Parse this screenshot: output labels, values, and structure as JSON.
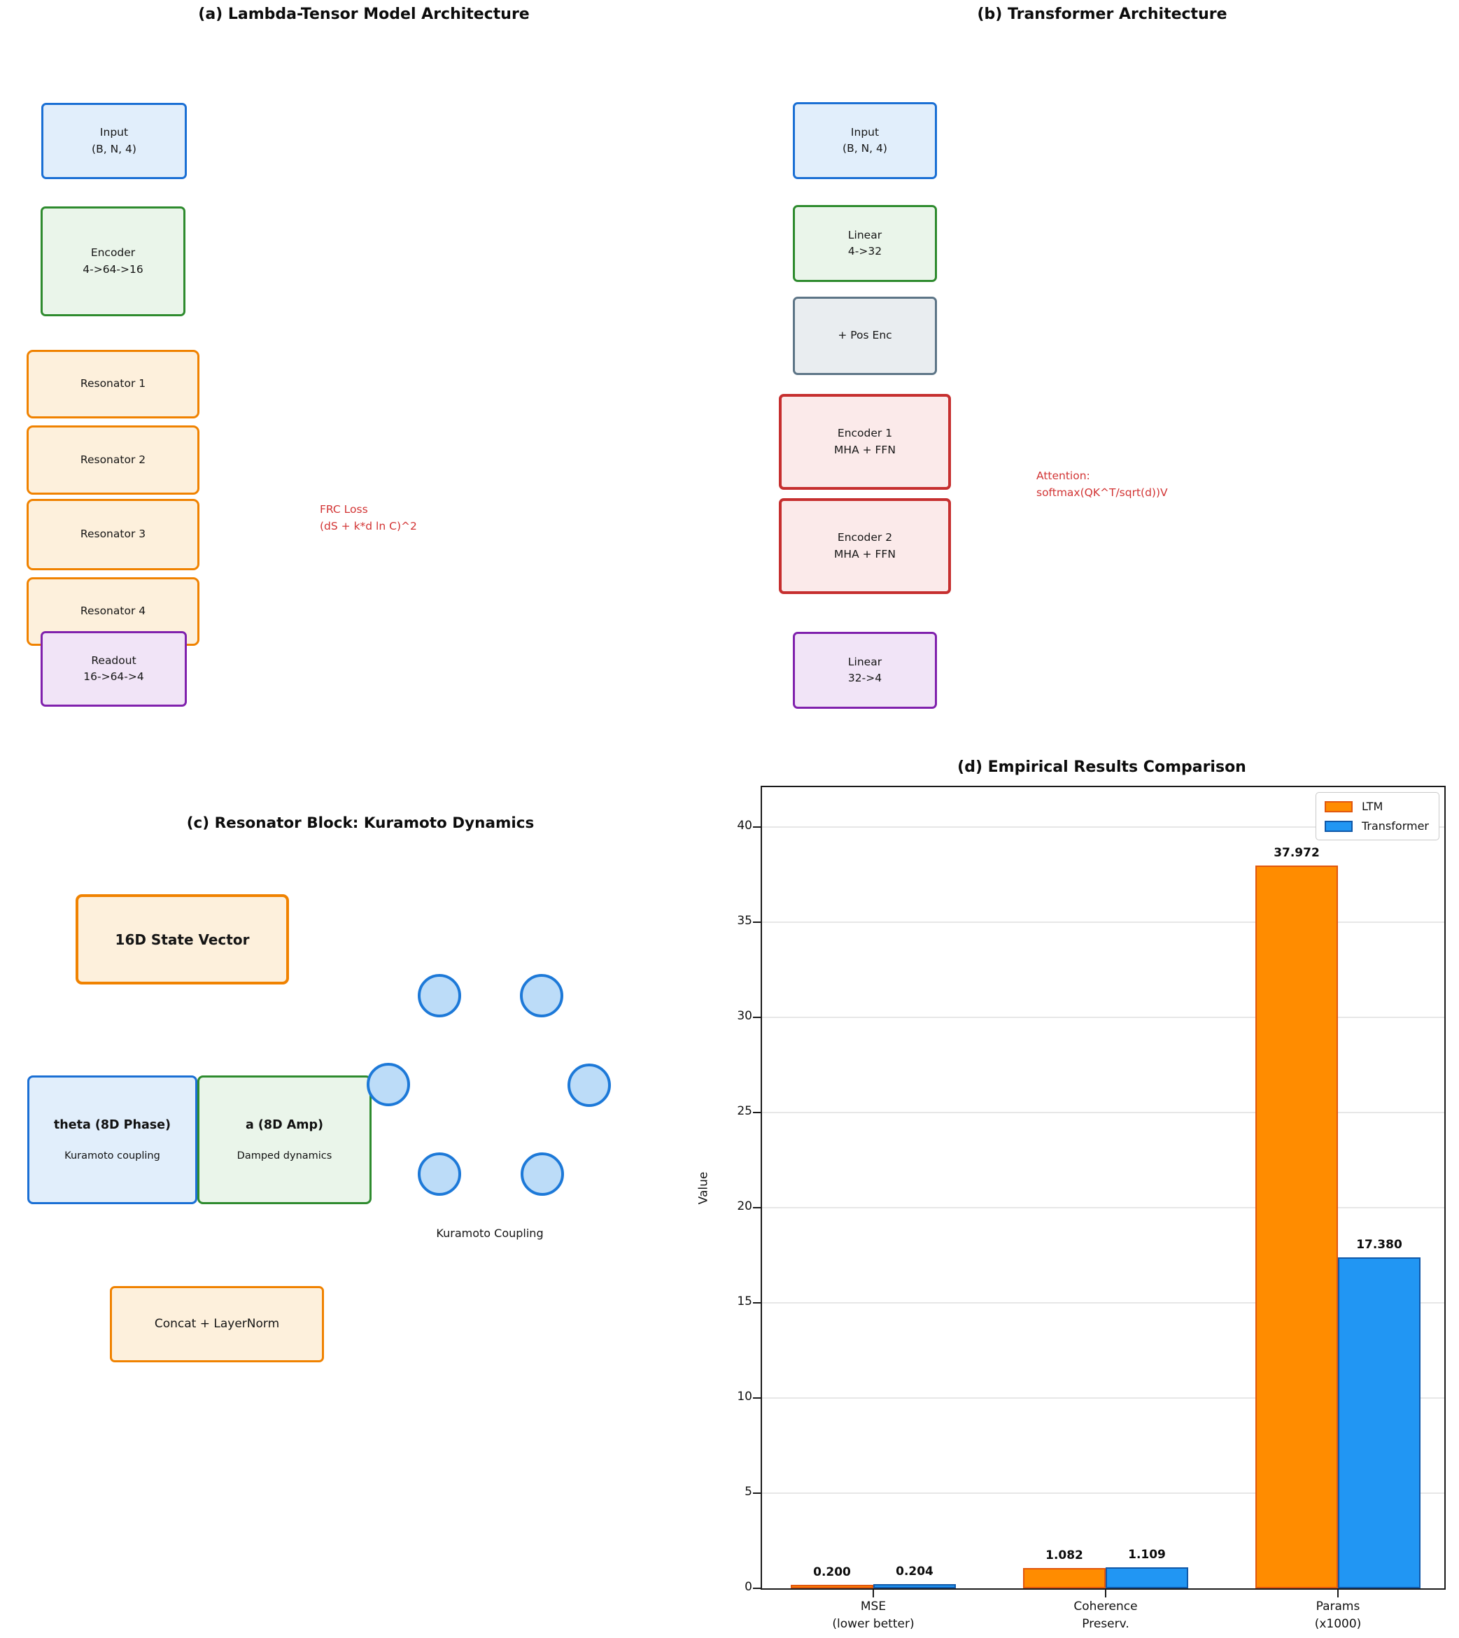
{
  "panel_a": {
    "title": "(a) Lambda-Tensor Model Architecture",
    "boxes": [
      "Input\n(B, N, 4)",
      "Encoder\n4->64->16",
      "Resonator 1",
      "Resonator 2",
      "Resonator 3",
      "Resonator 4",
      "Readout\n16->64->4"
    ],
    "annotation": "FRC Loss\n(dS + k*d ln C)^2"
  },
  "panel_b": {
    "title": "(b) Transformer Architecture",
    "boxes": [
      "Input\n(B, N, 4)",
      "Linear\n4->32",
      "+ Pos Enc",
      "Encoder 1\nMHA + FFN",
      "Encoder 2\nMHA + FFN",
      "Linear\n32->4"
    ],
    "annotation": "Attention:\nsoftmax(QK^T/sqrt(d))V"
  },
  "panel_c": {
    "title": "(c) Resonator Block: Kuramoto Dynamics",
    "state_box": "16D State Vector",
    "theta_box": {
      "title": "theta (8D Phase)",
      "subtitle": "Kuramoto coupling"
    },
    "amp_box": {
      "title": "a (8D Amp)",
      "subtitle": "Damped dynamics"
    },
    "oscillator_count": 6,
    "coupling_label": "Kuramoto Coupling",
    "concat_box": "Concat + LayerNorm"
  },
  "panel_d": {
    "title": "(d) Empirical Results Comparison"
  },
  "chart_data": {
    "type": "bar",
    "title": "(d) Empirical Results Comparison",
    "categories": [
      "MSE\n(lower better)",
      "Coherence\nPreserv.",
      "Params\n(x1000)"
    ],
    "series": [
      {
        "name": "LTM",
        "color": "#ff8c00",
        "edge": "#e1570e",
        "values": [
          0.2,
          1.082,
          37.972
        ]
      },
      {
        "name": "Transformer",
        "color": "#2196f3",
        "edge": "#1058a8",
        "values": [
          0.204,
          1.109,
          17.38
        ]
      }
    ],
    "ylabel": "Value",
    "xlabel": "",
    "yticks": [
      0,
      5,
      10,
      15,
      20,
      25,
      30,
      35,
      40
    ],
    "ylim": [
      0,
      42.1
    ],
    "grid": true,
    "legend_position": "upper right",
    "value_label_decimals": 3
  }
}
